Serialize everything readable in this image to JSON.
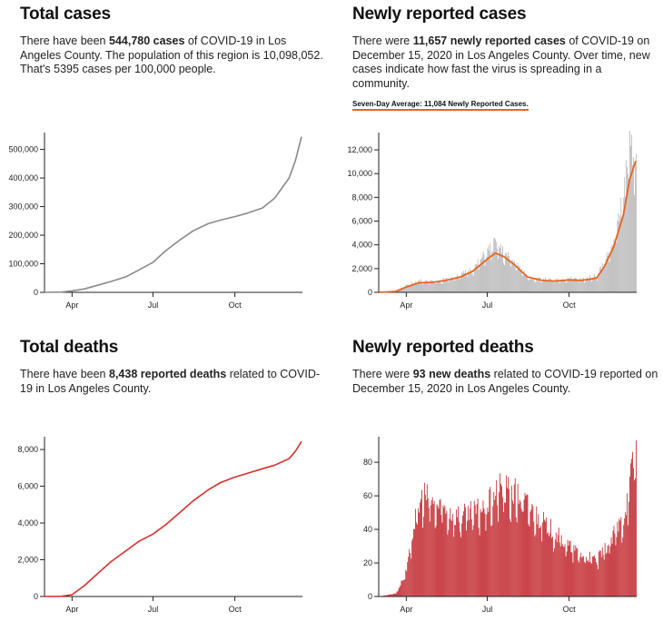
{
  "panels": {
    "cases": {
      "title": "Total cases",
      "t1": "There have been ",
      "b1": "544,780 cases",
      "t2": " of COVID-19 in Los Angeles County. The population of this region is 10,098,052. That's 5395 cases per 100,000 people."
    },
    "new_cases": {
      "title": "Newly reported cases",
      "t1": "There were ",
      "b1": "11,657 newly reported cases",
      "t2": " of COVID-19 on December 15, 2020 in Los Angeles County. Over time, new cases indicate how fast the virus is spreading in a community.",
      "avg_label": "Seven-Day Average: 11,084 Newly Reported Cases."
    },
    "deaths": {
      "title": "Total deaths",
      "t1": "There have been ",
      "b1": "8,438 reported deaths",
      "t2": " related to COVID-19 in Los Angeles County."
    },
    "new_deaths": {
      "title": "Newly reported deaths",
      "t1": "There were ",
      "b1": "93 new deaths",
      "t2": " related to COVID-19 reported on December 15, 2020 in Los Angeles County."
    }
  },
  "colors": {
    "cases_line": "#8a8a8a",
    "deaths_line": "#d4312b",
    "case_bars": "#b9b9b9",
    "case_avg": "#e8641e",
    "death_bars": "#c1272d"
  },
  "chart_data": [
    {
      "type": "line",
      "xlabel": "",
      "ylabel": "",
      "x_ticks": [
        "Apr",
        "Jul",
        "Oct"
      ],
      "y_ticks": [
        "500,000",
        "400,000",
        "300,000",
        "200,000",
        "100,000",
        "0"
      ],
      "y_tick_values": [
        500000,
        400000,
        300000,
        200000,
        100000,
        0
      ],
      "ylim": [
        0,
        540000
      ],
      "grid": false,
      "x": [
        "2020-03-01",
        "2020-03-20",
        "2020-04-01",
        "2020-04-15",
        "2020-05-01",
        "2020-05-15",
        "2020-06-01",
        "2020-06-15",
        "2020-07-01",
        "2020-07-15",
        "2020-08-01",
        "2020-08-15",
        "2020-09-01",
        "2020-09-15",
        "2020-10-01",
        "2020-10-15",
        "2020-11-01",
        "2020-11-15",
        "2020-12-01",
        "2020-12-08",
        "2020-12-15"
      ],
      "y": [
        0,
        800,
        5000,
        12000,
        26000,
        38000,
        55000,
        78000,
        105000,
        145000,
        185000,
        215000,
        240000,
        253000,
        265000,
        277000,
        295000,
        330000,
        400000,
        460000,
        544780
      ]
    },
    {
      "type": "bar",
      "xlabel": "",
      "ylabel": "",
      "x_ticks": [
        "Apr",
        "Jul",
        "Oct"
      ],
      "y_ticks": [
        "12,000",
        "10,000",
        "8,000",
        "6,000",
        "4,000",
        "2,000",
        "0"
      ],
      "y_tick_values": [
        12000,
        10000,
        8000,
        6000,
        4000,
        2000,
        0
      ],
      "ylim": [
        0,
        13000
      ],
      "grid": false,
      "legend": "Seven-Day Average: 11,084 Newly Reported Cases.",
      "x": [
        "2020-03-01",
        "2020-03-20",
        "2020-04-01",
        "2020-04-15",
        "2020-05-01",
        "2020-05-15",
        "2020-06-01",
        "2020-06-15",
        "2020-07-01",
        "2020-07-10",
        "2020-07-20",
        "2020-08-01",
        "2020-08-15",
        "2020-09-01",
        "2020-09-15",
        "2020-10-01",
        "2020-10-15",
        "2020-11-01",
        "2020-11-10",
        "2020-11-20",
        "2020-12-01",
        "2020-12-08",
        "2020-12-15"
      ],
      "series": [
        {
          "name": "Newly Reported Cases",
          "values": [
            0,
            100,
            600,
            1000,
            900,
            1100,
            1500,
            2000,
            3500,
            4200,
            3300,
            2500,
            1300,
            1100,
            1000,
            1200,
            1100,
            1400,
            2800,
            4300,
            8000,
            13000,
            11657
          ]
        },
        {
          "name": "Seven-Day Average",
          "values": [
            0,
            80,
            450,
            800,
            850,
            1000,
            1300,
            1800,
            2800,
            3300,
            3000,
            2300,
            1300,
            1000,
            950,
            1050,
            1000,
            1200,
            2200,
            3800,
            6500,
            9500,
            11084
          ]
        }
      ]
    },
    {
      "type": "line",
      "xlabel": "",
      "ylabel": "",
      "x_ticks": [
        "Apr",
        "Jul",
        "Oct"
      ],
      "y_ticks": [
        "8,000",
        "6,000",
        "4,000",
        "2,000",
        "0"
      ],
      "y_tick_values": [
        8000,
        6000,
        4000,
        2000,
        0
      ],
      "ylim": [
        0,
        8400
      ],
      "grid": false,
      "x": [
        "2020-03-01",
        "2020-03-20",
        "2020-04-01",
        "2020-04-15",
        "2020-05-01",
        "2020-05-15",
        "2020-06-01",
        "2020-06-15",
        "2020-07-01",
        "2020-07-15",
        "2020-08-01",
        "2020-08-15",
        "2020-09-01",
        "2020-09-15",
        "2020-10-01",
        "2020-10-15",
        "2020-11-01",
        "2020-11-15",
        "2020-12-01",
        "2020-12-08",
        "2020-12-15"
      ],
      "y": [
        0,
        10,
        100,
        600,
        1300,
        1900,
        2500,
        3000,
        3400,
        3900,
        4600,
        5200,
        5800,
        6200,
        6500,
        6700,
        6950,
        7150,
        7500,
        7900,
        8438
      ]
    },
    {
      "type": "bar",
      "xlabel": "",
      "ylabel": "",
      "x_ticks": [
        "Apr",
        "Jul",
        "Oct"
      ],
      "y_ticks": [
        "80",
        "60",
        "40",
        "20",
        "0"
      ],
      "y_tick_values": [
        80,
        60,
        40,
        20,
        0
      ],
      "ylim": [
        0,
        92
      ],
      "grid": false,
      "x": [
        "2020-03-01",
        "2020-03-20",
        "2020-04-01",
        "2020-04-10",
        "2020-04-20",
        "2020-05-01",
        "2020-05-15",
        "2020-06-01",
        "2020-06-15",
        "2020-07-01",
        "2020-07-15",
        "2020-08-01",
        "2020-08-15",
        "2020-09-01",
        "2020-09-15",
        "2020-10-01",
        "2020-10-15",
        "2020-11-01",
        "2020-11-15",
        "2020-12-01",
        "2020-12-08",
        "2020-12-15"
      ],
      "values": [
        0,
        2,
        15,
        45,
        62,
        55,
        52,
        48,
        50,
        55,
        65,
        62,
        55,
        45,
        38,
        30,
        25,
        22,
        32,
        48,
        68,
        93
      ]
    }
  ]
}
